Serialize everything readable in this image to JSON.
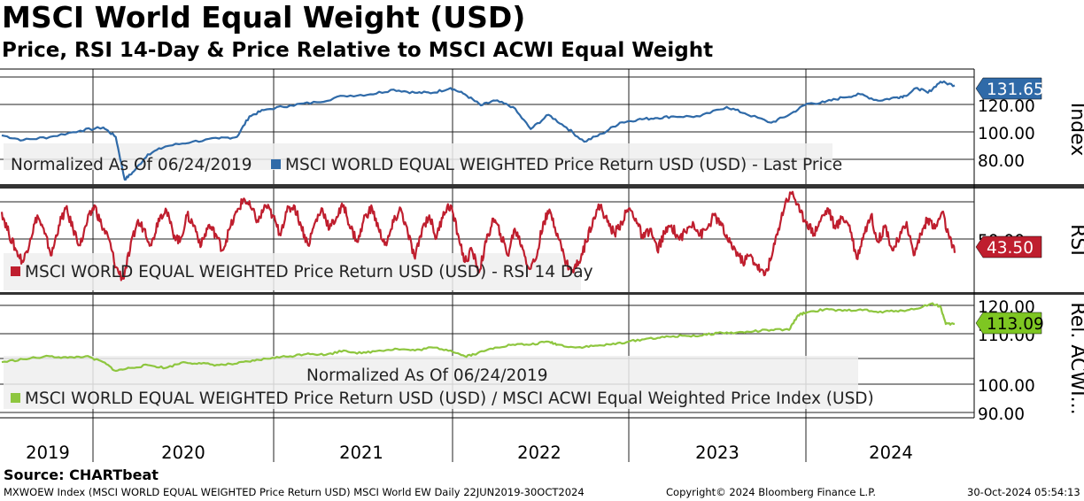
{
  "header": {
    "title": "MSCI World Equal Weight (USD)",
    "subtitle": "Price, RSI 14-Day & Price Relative to MSCI ACWI Equal Weight"
  },
  "source": "Source: CHARTbeat",
  "footer": {
    "left": "MXWOEW Index (MSCI WORLD EQUAL WEIGHTED Price Return USD) MSCI World EW  Daily 22JUN2019-30OCT2024",
    "center": "Copyright© 2024 Bloomberg Finance L.P.",
    "right": "30-Oct-2024 05:54:13"
  },
  "chart_data": [
    {
      "type": "line",
      "panel": "price",
      "axis_label": "Index",
      "legend_prefix": "Normalized As Of 06/24/2019",
      "legend_items": [
        "MSCI WORLD EQUAL WEIGHTED Price Return USD (USD) - Last Price"
      ],
      "y_ticks": [
        "120.00",
        "100.00",
        "80.00"
      ],
      "ylim": [
        68,
        142
      ],
      "last_value": "131.65",
      "color": "#2f6aa8",
      "x_start": 2019.48,
      "x_end": 2024.83,
      "series": [
        {
          "name": "MSCI WORLD EQUAL WEIGHTED Price Return USD (USD) - Last Price",
          "points": [
            [
              2019.48,
              100
            ],
            [
              2019.6,
              97
            ],
            [
              2019.75,
              99
            ],
            [
              2019.92,
              103
            ],
            [
              2020.05,
              105
            ],
            [
              2020.12,
              99
            ],
            [
              2020.17,
              72
            ],
            [
              2020.22,
              77
            ],
            [
              2020.3,
              88
            ],
            [
              2020.4,
              93
            ],
            [
              2020.55,
              96
            ],
            [
              2020.7,
              98
            ],
            [
              2020.8,
              99
            ],
            [
              2020.87,
              112
            ],
            [
              2020.95,
              116
            ],
            [
              2021.1,
              119
            ],
            [
              2021.25,
              121
            ],
            [
              2021.4,
              125
            ],
            [
              2021.55,
              126
            ],
            [
              2021.68,
              129
            ],
            [
              2021.8,
              127
            ],
            [
              2021.9,
              127
            ],
            [
              2022.0,
              130
            ],
            [
              2022.08,
              126
            ],
            [
              2022.17,
              119
            ],
            [
              2022.25,
              122
            ],
            [
              2022.35,
              118
            ],
            [
              2022.45,
              104
            ],
            [
              2022.55,
              113
            ],
            [
              2022.65,
              105
            ],
            [
              2022.75,
              96
            ],
            [
              2022.85,
              101
            ],
            [
              2022.95,
              108
            ],
            [
              2023.05,
              110
            ],
            [
              2023.15,
              111
            ],
            [
              2023.25,
              112
            ],
            [
              2023.4,
              112
            ],
            [
              2023.55,
              118
            ],
            [
              2023.65,
              114
            ],
            [
              2023.8,
              108
            ],
            [
              2023.9,
              113
            ],
            [
              2024.0,
              120
            ],
            [
              2024.1,
              121
            ],
            [
              2024.2,
              124
            ],
            [
              2024.3,
              126
            ],
            [
              2024.4,
              122
            ],
            [
              2024.5,
              124
            ],
            [
              2024.55,
              125
            ],
            [
              2024.62,
              130
            ],
            [
              2024.68,
              127
            ],
            [
              2024.75,
              134
            ],
            [
              2024.83,
              131.65
            ]
          ]
        }
      ]
    },
    {
      "type": "line",
      "panel": "rsi",
      "axis_label": "RSI",
      "legend_items": [
        "MSCI WORLD EQUAL WEIGHTED Price Return USD (USD) - RSI 14 Day"
      ],
      "y_ticks": [
        "50.00"
      ],
      "ylim": [
        20,
        82
      ],
      "last_value": "43.50",
      "color": "#bf1e2e",
      "x_start": 2019.48,
      "x_end": 2024.83,
      "series": [
        {
          "name": "MSCI WORLD EQUAL WEIGHTED Price Return USD (USD) - RSI 14 Day",
          "points": [
            [
              2019.48,
              68
            ],
            [
              2019.52,
              55
            ],
            [
              2019.56,
              45
            ],
            [
              2019.6,
              38
            ],
            [
              2019.64,
              52
            ],
            [
              2019.68,
              66
            ],
            [
              2019.72,
              55
            ],
            [
              2019.76,
              42
            ],
            [
              2019.8,
              60
            ],
            [
              2019.84,
              70
            ],
            [
              2019.88,
              58
            ],
            [
              2019.92,
              48
            ],
            [
              2019.96,
              62
            ],
            [
              2020.0,
              72
            ],
            [
              2020.04,
              60
            ],
            [
              2020.08,
              52
            ],
            [
              2020.12,
              35
            ],
            [
              2020.16,
              28
            ],
            [
              2020.2,
              45
            ],
            [
              2020.24,
              62
            ],
            [
              2020.28,
              58
            ],
            [
              2020.32,
              48
            ],
            [
              2020.36,
              64
            ],
            [
              2020.4,
              70
            ],
            [
              2020.44,
              56
            ],
            [
              2020.48,
              50
            ],
            [
              2020.52,
              66
            ],
            [
              2020.56,
              60
            ],
            [
              2020.6,
              48
            ],
            [
              2020.64,
              60
            ],
            [
              2020.68,
              55
            ],
            [
              2020.72,
              45
            ],
            [
              2020.76,
              58
            ],
            [
              2020.8,
              68
            ],
            [
              2020.84,
              76
            ],
            [
              2020.88,
              70
            ],
            [
              2020.92,
              62
            ],
            [
              2020.96,
              72
            ],
            [
              2021.0,
              66
            ],
            [
              2021.04,
              55
            ],
            [
              2021.08,
              68
            ],
            [
              2021.12,
              72
            ],
            [
              2021.16,
              60
            ],
            [
              2021.2,
              48
            ],
            [
              2021.24,
              62
            ],
            [
              2021.28,
              70
            ],
            [
              2021.32,
              58
            ],
            [
              2021.36,
              65
            ],
            [
              2021.4,
              72
            ],
            [
              2021.44,
              58
            ],
            [
              2021.48,
              50
            ],
            [
              2021.52,
              66
            ],
            [
              2021.56,
              70
            ],
            [
              2021.6,
              56
            ],
            [
              2021.64,
              48
            ],
            [
              2021.68,
              62
            ],
            [
              2021.72,
              70
            ],
            [
              2021.76,
              55
            ],
            [
              2021.8,
              40
            ],
            [
              2021.84,
              58
            ],
            [
              2021.88,
              66
            ],
            [
              2021.92,
              52
            ],
            [
              2021.96,
              68
            ],
            [
              2022.0,
              72
            ],
            [
              2022.04,
              55
            ],
            [
              2022.08,
              38
            ],
            [
              2022.12,
              45
            ],
            [
              2022.16,
              32
            ],
            [
              2022.2,
              50
            ],
            [
              2022.24,
              64
            ],
            [
              2022.28,
              55
            ],
            [
              2022.32,
              42
            ],
            [
              2022.36,
              58
            ],
            [
              2022.4,
              48
            ],
            [
              2022.44,
              34
            ],
            [
              2022.48,
              40
            ],
            [
              2022.52,
              62
            ],
            [
              2022.56,
              68
            ],
            [
              2022.6,
              55
            ],
            [
              2022.64,
              40
            ],
            [
              2022.68,
              32
            ],
            [
              2022.72,
              38
            ],
            [
              2022.76,
              50
            ],
            [
              2022.8,
              64
            ],
            [
              2022.84,
              72
            ],
            [
              2022.88,
              62
            ],
            [
              2022.92,
              55
            ],
            [
              2022.96,
              62
            ],
            [
              2023.0,
              70
            ],
            [
              2023.04,
              64
            ],
            [
              2023.08,
              52
            ],
            [
              2023.12,
              58
            ],
            [
              2023.16,
              45
            ],
            [
              2023.2,
              55
            ],
            [
              2023.24,
              60
            ],
            [
              2023.28,
              52
            ],
            [
              2023.32,
              56
            ],
            [
              2023.36,
              62
            ],
            [
              2023.4,
              54
            ],
            [
              2023.44,
              58
            ],
            [
              2023.48,
              66
            ],
            [
              2023.52,
              60
            ],
            [
              2023.56,
              50
            ],
            [
              2023.6,
              45
            ],
            [
              2023.64,
              38
            ],
            [
              2023.68,
              42
            ],
            [
              2023.72,
              36
            ],
            [
              2023.76,
              30
            ],
            [
              2023.8,
              40
            ],
            [
              2023.84,
              58
            ],
            [
              2023.88,
              74
            ],
            [
              2023.92,
              80
            ],
            [
              2023.96,
              68
            ],
            [
              2024.0,
              62
            ],
            [
              2024.04,
              55
            ],
            [
              2024.08,
              64
            ],
            [
              2024.12,
              70
            ],
            [
              2024.16,
              58
            ],
            [
              2024.2,
              65
            ],
            [
              2024.24,
              60
            ],
            [
              2024.28,
              40
            ],
            [
              2024.32,
              55
            ],
            [
              2024.36,
              66
            ],
            [
              2024.4,
              50
            ],
            [
              2024.44,
              60
            ],
            [
              2024.48,
              45
            ],
            [
              2024.52,
              52
            ],
            [
              2024.56,
              62
            ],
            [
              2024.6,
              42
            ],
            [
              2024.64,
              55
            ],
            [
              2024.68,
              64
            ],
            [
              2024.72,
              58
            ],
            [
              2024.76,
              68
            ],
            [
              2024.8,
              52
            ],
            [
              2024.83,
              43.5
            ]
          ]
        }
      ]
    },
    {
      "type": "line",
      "panel": "relative",
      "axis_label": "Rel. ACWI...",
      "legend_prefix": "Normalized As Of 06/24/2019",
      "legend_items": [
        "MSCI WORLD EQUAL WEIGHTED Price Return USD (USD) / MSCI ACWI Equal Weighted Price Index (USD)"
      ],
      "y_ticks": [
        "120.00",
        "110.00",
        "100.00",
        "90.00"
      ],
      "ylim": [
        81,
        123
      ],
      "last_value": "113.09",
      "color": "#8ec63f",
      "x_start": 2019.48,
      "x_end": 2024.83,
      "x_labels": [
        "2019",
        "2020",
        "2021",
        "2022",
        "2023",
        "2024"
      ],
      "series": [
        {
          "name": "MSCI WORLD EQUAL WEIGHTED Price Return USD (USD) / MSCI ACWI Equal Weighted Price Index (USD)",
          "points": [
            [
              2019.48,
              100
            ],
            [
              2019.6,
              101
            ],
            [
              2019.75,
              102
            ],
            [
              2019.85,
              101.5
            ],
            [
              2019.95,
              102
            ],
            [
              2020.05,
              100
            ],
            [
              2020.12,
              97
            ],
            [
              2020.2,
              98
            ],
            [
              2020.3,
              99
            ],
            [
              2020.4,
              98
            ],
            [
              2020.5,
              100
            ],
            [
              2020.6,
              99.5
            ],
            [
              2020.7,
              99
            ],
            [
              2020.8,
              99.5
            ],
            [
              2020.9,
              100.5
            ],
            [
              2021.0,
              101.5
            ],
            [
              2021.1,
              102
            ],
            [
              2021.2,
              103
            ],
            [
              2021.3,
              102.5
            ],
            [
              2021.4,
              104
            ],
            [
              2021.5,
              103
            ],
            [
              2021.6,
              104
            ],
            [
              2021.7,
              104.5
            ],
            [
              2021.8,
              104
            ],
            [
              2021.9,
              105
            ],
            [
              2022.0,
              104
            ],
            [
              2022.08,
              102
            ],
            [
              2022.15,
              103
            ],
            [
              2022.25,
              105
            ],
            [
              2022.35,
              106
            ],
            [
              2022.45,
              106
            ],
            [
              2022.55,
              107
            ],
            [
              2022.6,
              106
            ],
            [
              2022.7,
              105
            ],
            [
              2022.8,
              105.5
            ],
            [
              2022.9,
              106
            ],
            [
              2023.0,
              107
            ],
            [
              2023.1,
              108
            ],
            [
              2023.2,
              108.5
            ],
            [
              2023.3,
              109
            ],
            [
              2023.4,
              109
            ],
            [
              2023.5,
              110
            ],
            [
              2023.6,
              110
            ],
            [
              2023.7,
              110.5
            ],
            [
              2023.8,
              111
            ],
            [
              2023.9,
              111
            ],
            [
              2023.95,
              116
            ],
            [
              2024.0,
              117
            ],
            [
              2024.1,
              118
            ],
            [
              2024.2,
              117.5
            ],
            [
              2024.3,
              118
            ],
            [
              2024.4,
              117
            ],
            [
              2024.5,
              117.5
            ],
            [
              2024.6,
              118
            ],
            [
              2024.7,
              120
            ],
            [
              2024.75,
              119
            ],
            [
              2024.78,
              113
            ],
            [
              2024.83,
              113.09
            ]
          ]
        }
      ]
    }
  ]
}
